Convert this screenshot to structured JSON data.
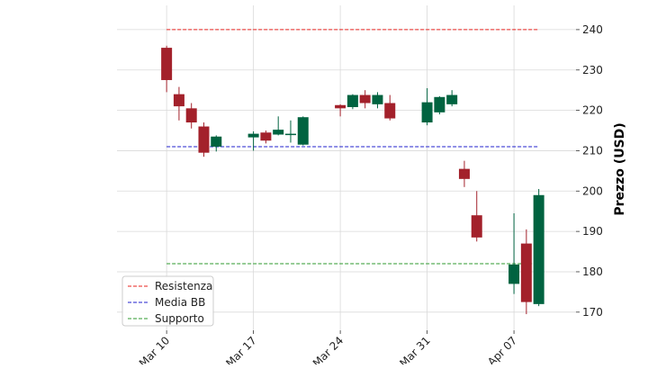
{
  "chart_data": {
    "type": "candlestick",
    "ylabel": "Prezzo (USD)",
    "ylim": [
      165.5,
      246
    ],
    "y_ticks": [
      170,
      180,
      190,
      200,
      210,
      220,
      230,
      240
    ],
    "x_ticks": [
      {
        "date": "2025-03-10",
        "label": "Mar 10"
      },
      {
        "date": "2025-03-17",
        "label": "Mar 17"
      },
      {
        "date": "2025-03-24",
        "label": "Mar 24"
      },
      {
        "date": "2025-03-31",
        "label": "Mar 31"
      },
      {
        "date": "2025-04-07",
        "label": "Apr 07"
      }
    ],
    "x_range": [
      "2025-03-06",
      "2025-04-12"
    ],
    "grid": true,
    "legend_position": "lower-left",
    "colors": {
      "up": "#006340",
      "down": "#a3212b"
    },
    "candles": [
      {
        "date": "2025-03-10",
        "open": 235.5,
        "high": 236.0,
        "low": 224.5,
        "close": 227.5
      },
      {
        "date": "2025-03-11",
        "open": 224.0,
        "high": 225.8,
        "low": 217.5,
        "close": 221.0
      },
      {
        "date": "2025-03-12",
        "open": 220.5,
        "high": 221.8,
        "low": 215.5,
        "close": 217.0
      },
      {
        "date": "2025-03-13",
        "open": 216.0,
        "high": 217.0,
        "low": 208.5,
        "close": 209.5
      },
      {
        "date": "2025-03-14",
        "open": 211.0,
        "high": 213.8,
        "low": 209.8,
        "close": 213.5
      },
      {
        "date": "2025-03-17",
        "open": 213.3,
        "high": 214.8,
        "low": 210.0,
        "close": 214.2
      },
      {
        "date": "2025-03-18",
        "open": 214.5,
        "high": 215.0,
        "low": 211.8,
        "close": 212.5
      },
      {
        "date": "2025-03-19",
        "open": 214.0,
        "high": 218.5,
        "low": 213.8,
        "close": 215.2
      },
      {
        "date": "2025-03-20",
        "open": 214.0,
        "high": 217.5,
        "low": 212.0,
        "close": 214.2
      },
      {
        "date": "2025-03-21",
        "open": 211.5,
        "high": 218.5,
        "low": 211.3,
        "close": 218.3
      },
      {
        "date": "2025-03-24",
        "open": 221.3,
        "high": 221.5,
        "low": 218.5,
        "close": 220.5
      },
      {
        "date": "2025-03-25",
        "open": 220.8,
        "high": 224.0,
        "low": 220.3,
        "close": 223.8
      },
      {
        "date": "2025-03-26",
        "open": 223.8,
        "high": 225.0,
        "low": 220.5,
        "close": 221.8
      },
      {
        "date": "2025-03-27",
        "open": 221.5,
        "high": 224.5,
        "low": 220.5,
        "close": 223.8
      },
      {
        "date": "2025-03-28",
        "open": 221.8,
        "high": 223.8,
        "low": 217.5,
        "close": 218.0
      },
      {
        "date": "2025-03-31",
        "open": 217.0,
        "high": 225.5,
        "low": 216.3,
        "close": 222.0
      },
      {
        "date": "2025-04-01",
        "open": 219.5,
        "high": 223.5,
        "low": 219.0,
        "close": 223.3
      },
      {
        "date": "2025-04-02",
        "open": 221.5,
        "high": 225.0,
        "low": 221.0,
        "close": 223.8
      },
      {
        "date": "2025-04-03",
        "open": 205.5,
        "high": 207.5,
        "low": 201.0,
        "close": 203.0
      },
      {
        "date": "2025-04-04",
        "open": 194.0,
        "high": 200.0,
        "low": 187.5,
        "close": 188.5
      },
      {
        "date": "2025-04-07",
        "open": 177.0,
        "high": 194.5,
        "low": 174.5,
        "close": 181.8
      },
      {
        "date": "2025-04-08",
        "open": 187.0,
        "high": 190.5,
        "low": 169.5,
        "close": 172.5
      },
      {
        "date": "2025-04-09",
        "open": 172.0,
        "high": 200.5,
        "low": 171.5,
        "close": 199.0
      }
    ],
    "reference_lines": [
      {
        "name": "Resistenza",
        "value": 240.0,
        "color": "#e8211d"
      },
      {
        "name": "Media BB",
        "value": 211.0,
        "color": "#1f1fcc"
      },
      {
        "name": "Supporto",
        "value": 182.0,
        "color": "#2c9a2c"
      }
    ]
  }
}
